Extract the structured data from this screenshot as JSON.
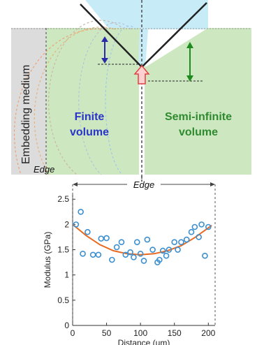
{
  "diagram": {
    "embedding_label": "Embedding medium",
    "left_label_line1": "Finite",
    "left_label_line2": "volume",
    "right_label_line1": "Semi-infinite",
    "right_label_line2": "volume",
    "edge_label": "Edge",
    "colors": {
      "sample_green": "#cde8c0",
      "embedding_gray": "#dcdcdc",
      "water_blue": "#c8ecf7",
      "finite_text": "#2a35c8",
      "semi_text": "#2f8a2f",
      "blue_arrow": "#2b2ba8",
      "green_arrow": "#1e8b1e",
      "red_arrow": "#e04040",
      "contour_colors": [
        "#f0a070",
        "#e9b27a",
        "#c9b6a8",
        "#b7c0d8",
        "#9fc6e8"
      ]
    }
  },
  "chart_data": {
    "type": "scatter",
    "title": "",
    "top_label": "Edge",
    "xlabel": "Distance (um)",
    "ylabel": "Modulus (GPa)",
    "xlim": [
      0,
      210
    ],
    "ylim": [
      0,
      2.6
    ],
    "xticks": [
      0,
      50,
      100,
      150,
      200
    ],
    "yticks": [
      0,
      0.5,
      1,
      1.5,
      2,
      2.5
    ],
    "ytick_labels": [
      "0",
      "0.5",
      "1",
      "1.5",
      "2",
      "2.5"
    ],
    "grid": false,
    "marker_color": "#3b8fd0",
    "fit_color": "#e86a20",
    "points": [
      {
        "x": 5,
        "y": 2.0
      },
      {
        "x": 12,
        "y": 2.25
      },
      {
        "x": 15,
        "y": 1.42
      },
      {
        "x": 22,
        "y": 1.85
      },
      {
        "x": 30,
        "y": 1.4
      },
      {
        "x": 38,
        "y": 1.4
      },
      {
        "x": 42,
        "y": 1.72
      },
      {
        "x": 50,
        "y": 1.73
      },
      {
        "x": 58,
        "y": 1.3
      },
      {
        "x": 65,
        "y": 1.55
      },
      {
        "x": 72,
        "y": 1.65
      },
      {
        "x": 78,
        "y": 1.4
      },
      {
        "x": 85,
        "y": 1.45
      },
      {
        "x": 90,
        "y": 1.35
      },
      {
        "x": 95,
        "y": 1.65
      },
      {
        "x": 100,
        "y": 1.42
      },
      {
        "x": 105,
        "y": 1.28
      },
      {
        "x": 110,
        "y": 1.7
      },
      {
        "x": 118,
        "y": 1.5
      },
      {
        "x": 125,
        "y": 1.25
      },
      {
        "x": 128,
        "y": 1.3
      },
      {
        "x": 133,
        "y": 1.48
      },
      {
        "x": 138,
        "y": 1.38
      },
      {
        "x": 142,
        "y": 1.5
      },
      {
        "x": 150,
        "y": 1.65
      },
      {
        "x": 155,
        "y": 1.5
      },
      {
        "x": 160,
        "y": 1.65
      },
      {
        "x": 168,
        "y": 1.7
      },
      {
        "x": 175,
        "y": 1.85
      },
      {
        "x": 180,
        "y": 1.95
      },
      {
        "x": 186,
        "y": 1.75
      },
      {
        "x": 190,
        "y": 2.0
      },
      {
        "x": 195,
        "y": 1.38
      },
      {
        "x": 200,
        "y": 1.95
      }
    ],
    "fit": [
      {
        "x": 0,
        "y": 2.0
      },
      {
        "x": 20,
        "y": 1.78
      },
      {
        "x": 40,
        "y": 1.6
      },
      {
        "x": 60,
        "y": 1.48
      },
      {
        "x": 80,
        "y": 1.42
      },
      {
        "x": 100,
        "y": 1.4
      },
      {
        "x": 120,
        "y": 1.42
      },
      {
        "x": 140,
        "y": 1.48
      },
      {
        "x": 160,
        "y": 1.58
      },
      {
        "x": 180,
        "y": 1.74
      },
      {
        "x": 205,
        "y": 1.98
      }
    ]
  }
}
